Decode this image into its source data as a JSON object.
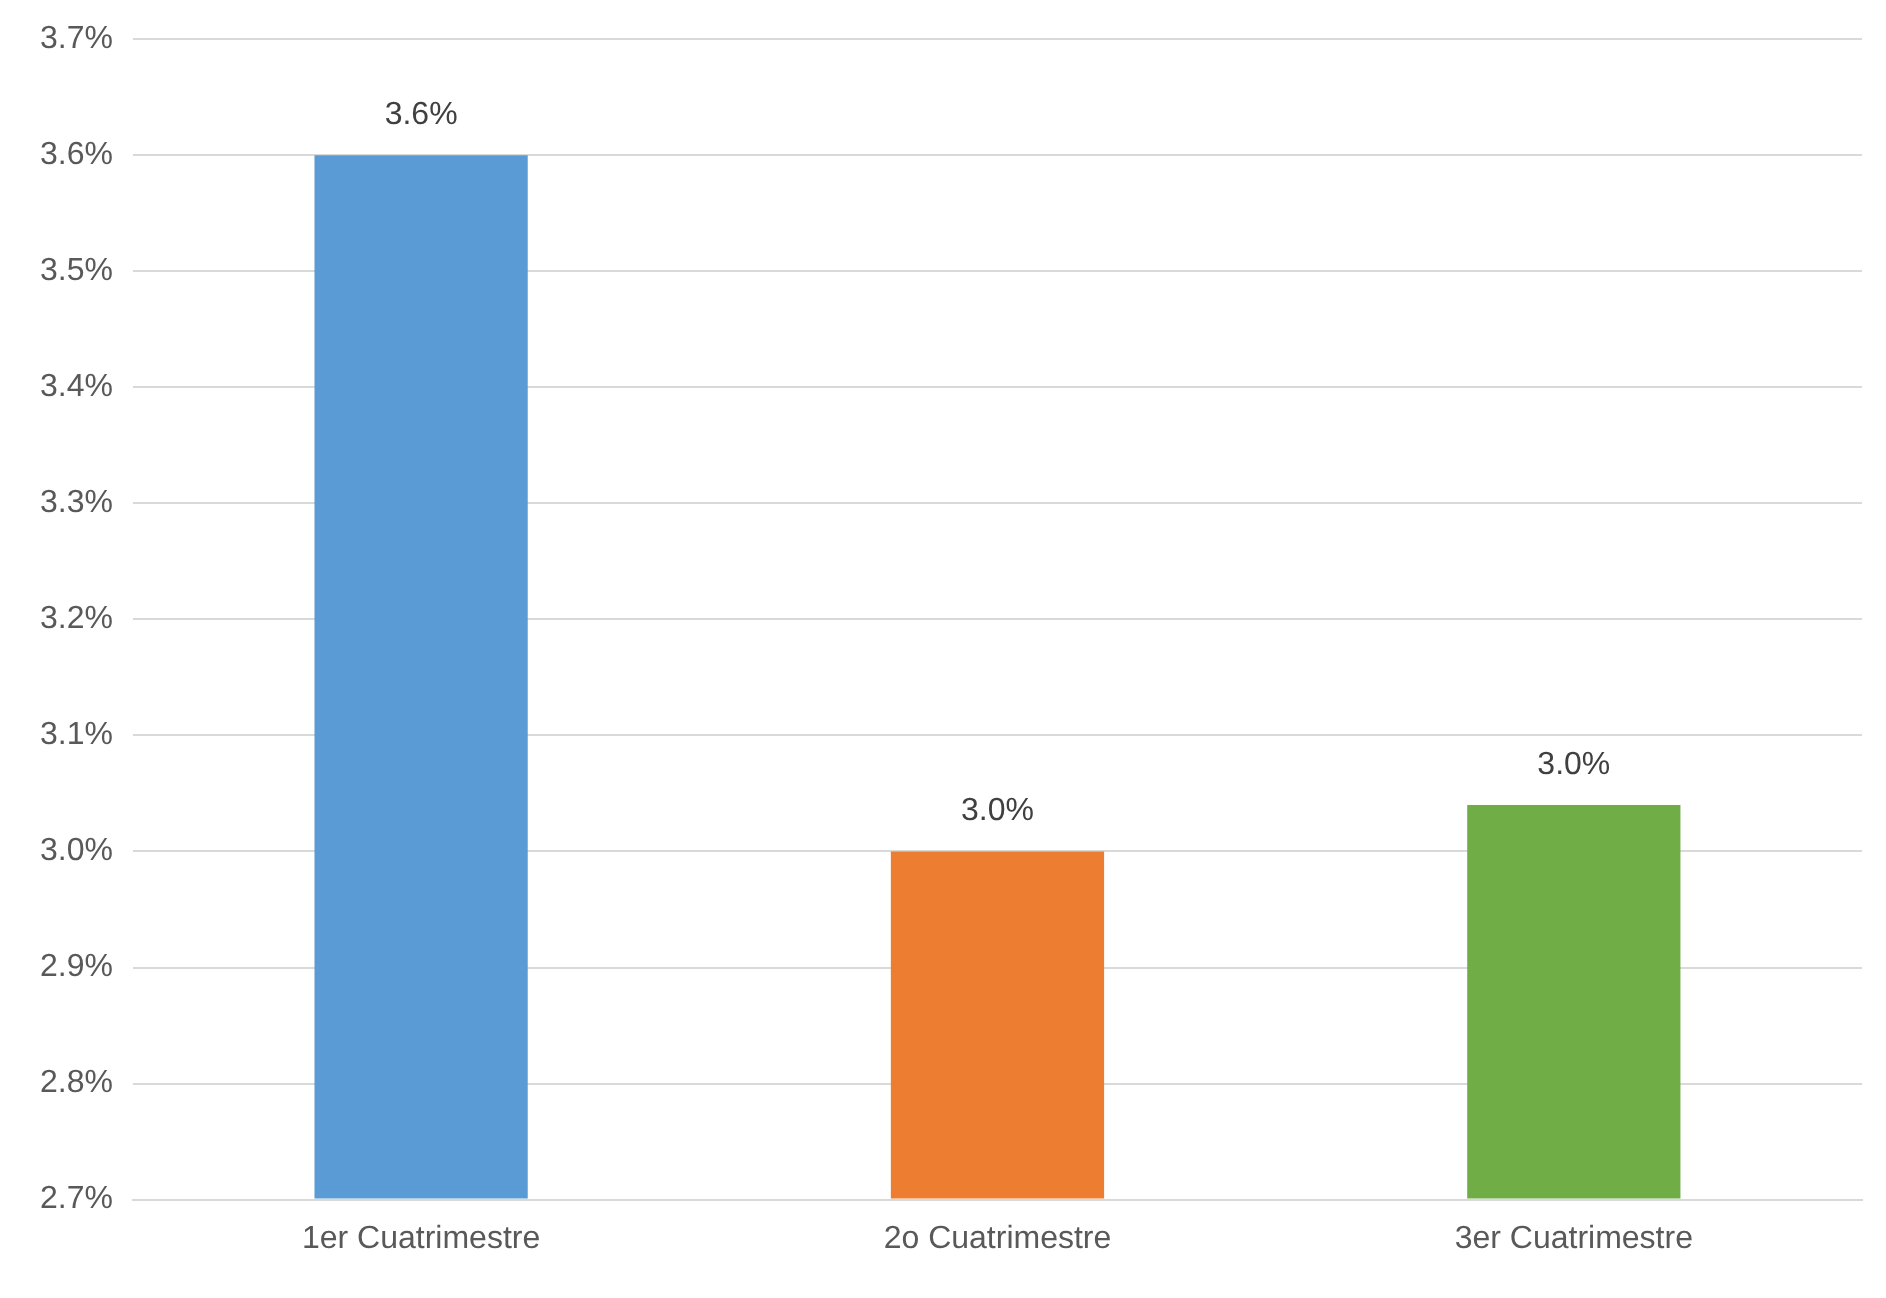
{
  "chart_data": {
    "type": "bar",
    "categories": [
      "1er Cuatrimestre",
      "2o Cuatrimestre",
      "3er Cuatrimestre"
    ],
    "values": [
      3.6,
      3.0,
      3.04
    ],
    "colors": [
      "#5b9bd5",
      "#ed7d31",
      "#70ad47"
    ],
    "value_labels": [
      "3.6%",
      "3.0%",
      "3.0%"
    ],
    "ylim": [
      2.7,
      3.7
    ],
    "yticks": [
      {
        "value": 2.7,
        "label": "2.7%"
      },
      {
        "value": 2.8,
        "label": "2.8%"
      },
      {
        "value": 2.9,
        "label": "2.9%"
      },
      {
        "value": 3.0,
        "label": "3.0%"
      },
      {
        "value": 3.1,
        "label": "3.1%"
      },
      {
        "value": 3.2,
        "label": "3.2%"
      },
      {
        "value": 3.3,
        "label": "3.3%"
      },
      {
        "value": 3.4,
        "label": "3.4%"
      },
      {
        "value": 3.5,
        "label": "3.5%"
      },
      {
        "value": 3.6,
        "label": "3.6%"
      },
      {
        "value": 3.7,
        "label": "3.7%"
      }
    ],
    "grid": "y",
    "legend": false
  }
}
